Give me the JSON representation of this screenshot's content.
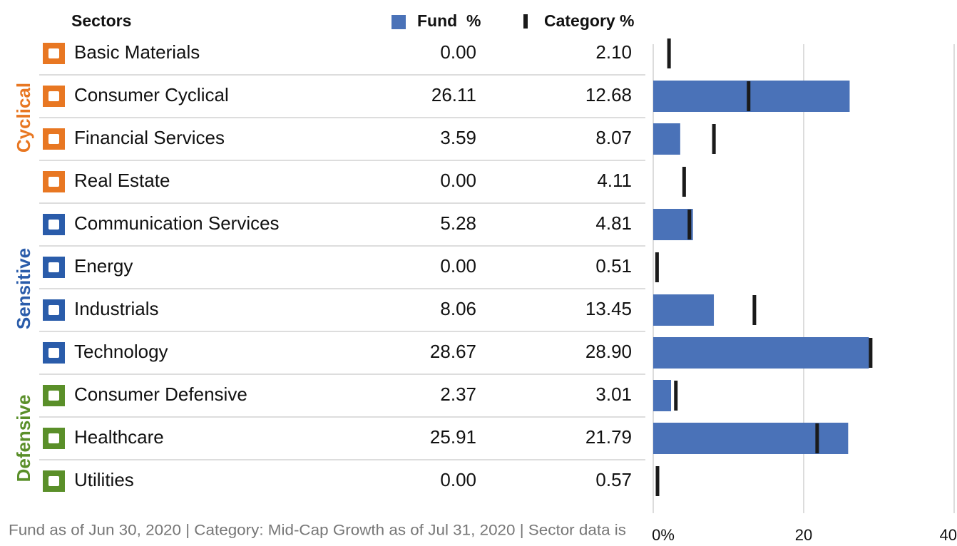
{
  "header": {
    "sectors": "Sectors",
    "fund": "Fund",
    "fund_unit": "%",
    "category": "Category",
    "category_unit": "%"
  },
  "groups": [
    {
      "name": "Cyclical",
      "color": "#e87722",
      "rows": [
        {
          "name": "Basic Materials",
          "fund": {
            "value": 0,
            "label": "0.00"
          },
          "category": {
            "value": 2.1,
            "label": "2.10"
          }
        },
        {
          "name": "Consumer Cyclical",
          "fund": {
            "value": 26.11,
            "label": "26.11"
          },
          "category": {
            "value": 12.68,
            "label": "12.68"
          }
        },
        {
          "name": "Financial Services",
          "fund": {
            "value": 3.59,
            "label": "3.59"
          },
          "category": {
            "value": 8.07,
            "label": "8.07"
          }
        },
        {
          "name": "Real Estate",
          "fund": {
            "value": 0,
            "label": "0.00"
          },
          "category": {
            "value": 4.11,
            "label": "4.11"
          }
        }
      ]
    },
    {
      "name": "Sensitive",
      "color": "#2a5caa",
      "rows": [
        {
          "name": "Communication Services",
          "fund": {
            "value": 5.28,
            "label": "5.28"
          },
          "category": {
            "value": 4.81,
            "label": "4.81"
          }
        },
        {
          "name": "Energy",
          "fund": {
            "value": 0,
            "label": "0.00"
          },
          "category": {
            "value": 0.51,
            "label": "0.51"
          }
        },
        {
          "name": "Industrials",
          "fund": {
            "value": 8.06,
            "label": "8.06"
          },
          "category": {
            "value": 13.45,
            "label": "13.45"
          }
        },
        {
          "name": "Technology",
          "fund": {
            "value": 28.67,
            "label": "28.67"
          },
          "category": {
            "value": 28.9,
            "label": "28.90"
          }
        }
      ]
    },
    {
      "name": "Defensive",
      "color": "#5a8f29",
      "rows": [
        {
          "name": "Consumer Defensive",
          "fund": {
            "value": 2.37,
            "label": "2.37"
          },
          "category": {
            "value": 3.01,
            "label": "3.01"
          }
        },
        {
          "name": "Healthcare",
          "fund": {
            "value": 25.91,
            "label": "25.91"
          },
          "category": {
            "value": 21.79,
            "label": "21.79"
          }
        },
        {
          "name": "Utilities",
          "fund": {
            "value": 0,
            "label": "0.00"
          },
          "category": {
            "value": 0.57,
            "label": "0.57"
          }
        }
      ]
    }
  ],
  "chart": {
    "xlim": [
      0,
      40
    ],
    "xticks": [
      {
        "value": 0,
        "label": "0%"
      },
      20,
      40
    ],
    "fund_color": "#4a72b8",
    "category_color": "#1a1a1a"
  },
  "footnote": "Fund as of Jun 30, 2020 | Category: Mid-Cap Growth as of Jul 31, 2020 | Sector data is"
}
